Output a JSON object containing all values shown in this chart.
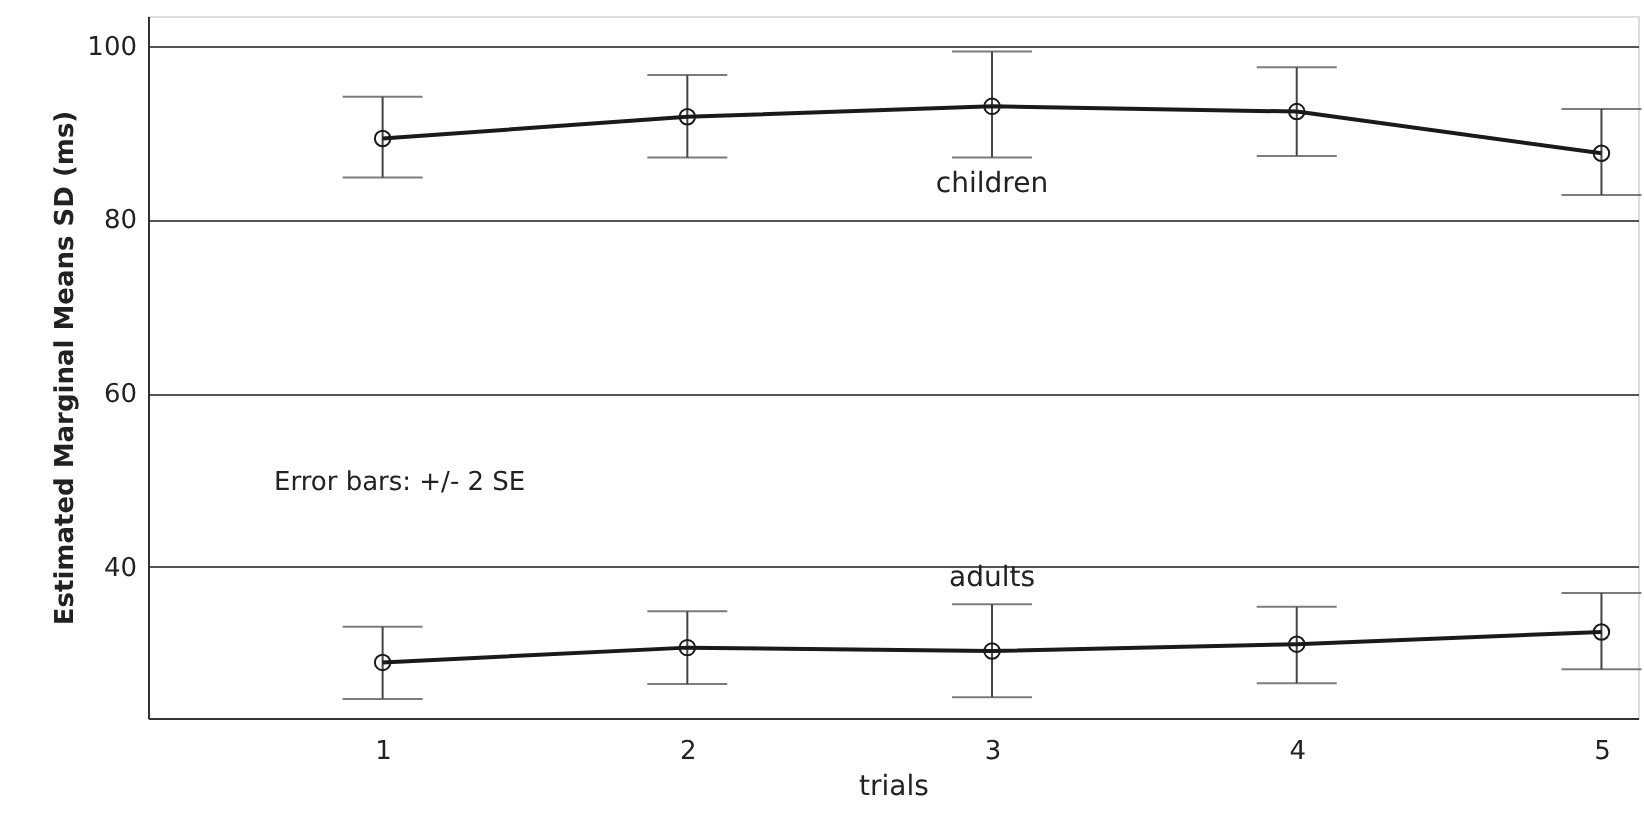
{
  "chart_data": {
    "type": "line",
    "xlabel": "trials",
    "ylabel": "Estimated Marginal Means SD (ms)",
    "x": [
      1,
      2,
      3,
      4,
      5
    ],
    "series": [
      {
        "name": "children",
        "color": "#1a1a1a",
        "values": [
          89.3,
          91.8,
          93.0,
          92.4,
          87.6
        ],
        "errors": [
          [
            84.8,
            94.1
          ],
          [
            87.1,
            96.6
          ],
          [
            87.1,
            99.3
          ],
          [
            87.3,
            97.5
          ],
          [
            82.8,
            92.7
          ]
        ]
      },
      {
        "name": "adults",
        "color": "#1a1a1a",
        "values": [
          29.0,
          30.7,
          30.3,
          31.1,
          32.5
        ],
        "errors": [
          [
            24.8,
            33.1
          ],
          [
            26.5,
            34.9
          ],
          [
            25.0,
            35.7
          ],
          [
            26.6,
            35.4
          ],
          [
            28.2,
            37.0
          ]
        ]
      }
    ],
    "xlim": [
      0.23,
      5.12
    ],
    "xticks": [
      1,
      2,
      3,
      4,
      5
    ],
    "ylim": [
      22.6,
      103.4
    ],
    "yticks": [
      40,
      60,
      80,
      100
    ],
    "grid": "y",
    "marker": "circle",
    "line_style": "solid",
    "annotations": [
      "Error bars: +/- 2 SE"
    ]
  }
}
